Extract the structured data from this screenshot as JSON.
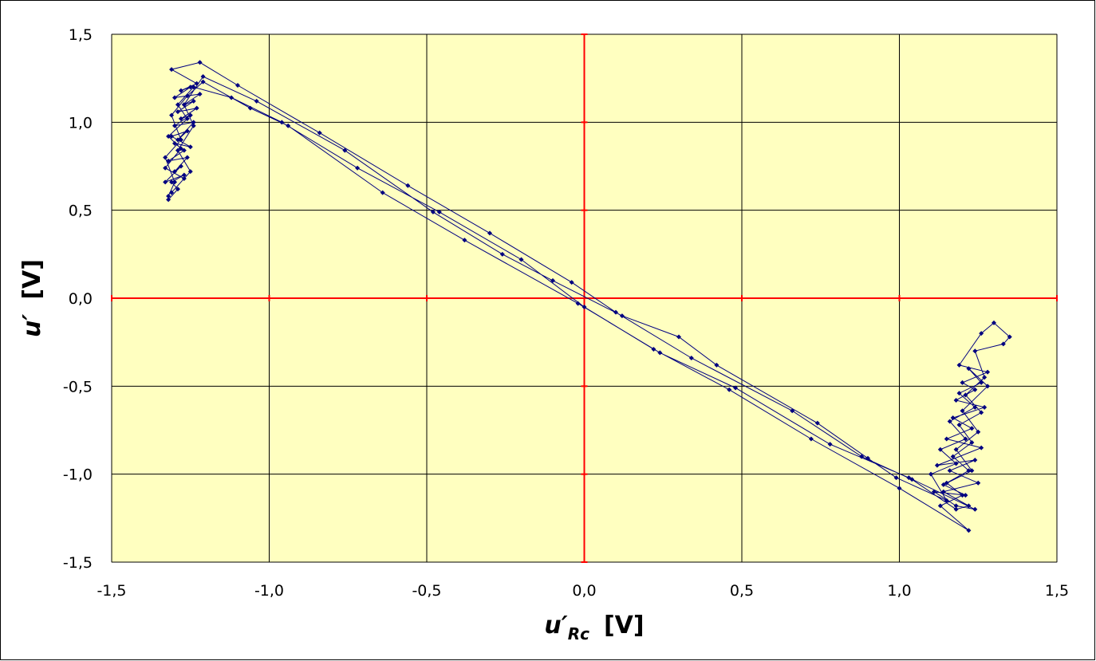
{
  "chart_data": {
    "type": "scatter",
    "xlabel": {
      "main": "u′",
      "sub": "Rc",
      "unit": "[V]"
    },
    "ylabel": {
      "main": "u′",
      "unit": "[V]"
    },
    "xlim": [
      -1.5,
      1.5
    ],
    "ylim": [
      -1.5,
      1.5
    ],
    "xticks": [
      {
        "value": -1.5,
        "label": "-1,5"
      },
      {
        "value": -1.0,
        "label": "-1,0"
      },
      {
        "value": -0.5,
        "label": "-0,5"
      },
      {
        "value": 0,
        "label": "0,0"
      },
      {
        "value": 0.5,
        "label": "0,5"
      },
      {
        "value": 1.0,
        "label": "1,0"
      },
      {
        "value": 1.5,
        "label": "1,5"
      }
    ],
    "yticks": [
      {
        "value": -1.5,
        "label": "-1,5"
      },
      {
        "value": -1.0,
        "label": "-1,0"
      },
      {
        "value": -0.5,
        "label": "-0,5"
      },
      {
        "value": 0,
        "label": "0,0"
      },
      {
        "value": 0.5,
        "label": "0,5"
      },
      {
        "value": 1.0,
        "label": "1,0"
      },
      {
        "value": 1.5,
        "label": "1,5"
      }
    ],
    "grid": true,
    "plot_background": "#ffffc0",
    "zero_line_color": "#ff0000",
    "color": "#000080",
    "x": [
      -1.32,
      -1.29,
      -1.31,
      -1.27,
      -1.33,
      -1.28,
      -1.3,
      -1.26,
      -1.32,
      -1.27,
      -1.3,
      -1.25,
      -1.31,
      -1.26,
      -1.29,
      -1.24,
      -1.3,
      -1.25,
      -1.28,
      -1.23,
      -1.29,
      -1.24,
      -1.27,
      -1.22,
      -1.3,
      -1.25,
      -1.28,
      -1.23,
      -1.31,
      -1.22,
      -1.1,
      -0.84,
      -0.56,
      -0.3,
      -0.04,
      0.1,
      0.34,
      0.66,
      0.88,
      1.04,
      1.18,
      1.22,
      1.14,
      1.25,
      1.16,
      1.24,
      1.12,
      1.26,
      1.15,
      1.23,
      1.17,
      1.27,
      1.18,
      1.24,
      1.2,
      1.28,
      1.19,
      1.26,
      1.3,
      1.35,
      1.33,
      1.24,
      1.27,
      1.21,
      1.26,
      1.19,
      1.23,
      1.17,
      1.22,
      1.15,
      1.2,
      1.13,
      1.22,
      1.0,
      0.72,
      0.46,
      0.22,
      0.0,
      -0.2,
      -0.46,
      -0.72,
      -0.96,
      -1.12,
      -1.24,
      -1.29,
      -1.26,
      -1.32,
      -1.28,
      -1.33,
      -1.27,
      -1.31,
      -1.25,
      -1.29,
      -1.24,
      -1.27,
      -1.21,
      -1.04,
      -0.76,
      -0.48,
      -0.26,
      -0.1,
      0.12,
      0.3,
      0.42,
      0.74,
      0.9,
      0.99,
      1.15,
      1.1,
      1.18,
      1.13,
      1.21,
      1.16,
      1.24,
      1.19,
      1.26,
      1.22,
      1.28,
      1.2,
      1.25,
      1.18,
      1.23,
      1.14,
      1.21,
      1.11,
      1.18,
      1.24,
      1.03,
      0.78,
      0.48,
      0.24,
      -0.02,
      -0.38,
      -0.64,
      -0.94,
      -1.06,
      -1.21,
      -1.26,
      -1.31,
      -1.28,
      -1.33,
      -1.3,
      -1.32
    ],
    "values": [
      0.56,
      0.62,
      0.66,
      0.7,
      0.66,
      0.75,
      0.72,
      0.8,
      0.78,
      0.84,
      0.88,
      0.86,
      0.92,
      0.95,
      0.9,
      1.0,
      0.98,
      1.04,
      1.02,
      1.08,
      1.06,
      1.12,
      1.1,
      1.16,
      1.14,
      1.2,
      1.18,
      1.22,
      1.3,
      1.34,
      1.21,
      0.94,
      0.64,
      0.37,
      0.09,
      -0.08,
      -0.34,
      -0.64,
      -0.9,
      -1.03,
      -1.2,
      -1.18,
      -1.1,
      -1.05,
      -0.98,
      -0.92,
      -0.95,
      -0.85,
      -0.8,
      -0.74,
      -0.68,
      -0.62,
      -0.58,
      -0.52,
      -0.48,
      -0.42,
      -0.38,
      -0.2,
      -0.14,
      -0.22,
      -0.26,
      -0.3,
      -0.45,
      -0.55,
      -0.65,
      -0.72,
      -0.82,
      -0.9,
      -0.98,
      -1.05,
      -1.12,
      -1.18,
      -1.32,
      -1.08,
      -0.8,
      -0.52,
      -0.29,
      -0.05,
      0.22,
      0.49,
      0.74,
      1.0,
      1.14,
      1.2,
      1.1,
      1.02,
      0.92,
      0.85,
      0.74,
      0.68,
      0.6,
      0.72,
      0.84,
      0.98,
      1.1,
      1.26,
      1.12,
      0.84,
      0.49,
      0.25,
      0.1,
      -0.1,
      -0.22,
      -0.38,
      -0.71,
      -0.91,
      -1.02,
      -1.15,
      -1.0,
      -0.94,
      -0.86,
      -0.8,
      -0.7,
      -0.62,
      -0.54,
      -0.48,
      -0.4,
      -0.5,
      -0.64,
      -0.76,
      -0.86,
      -0.98,
      -1.06,
      -1.12,
      -1.1,
      -1.18,
      -1.2,
      -1.02,
      -0.83,
      -0.51,
      -0.31,
      -0.03,
      0.33,
      0.6,
      0.98,
      1.08,
      1.23,
      1.15,
      1.04,
      0.9,
      0.8,
      0.66,
      0.58
    ]
  }
}
